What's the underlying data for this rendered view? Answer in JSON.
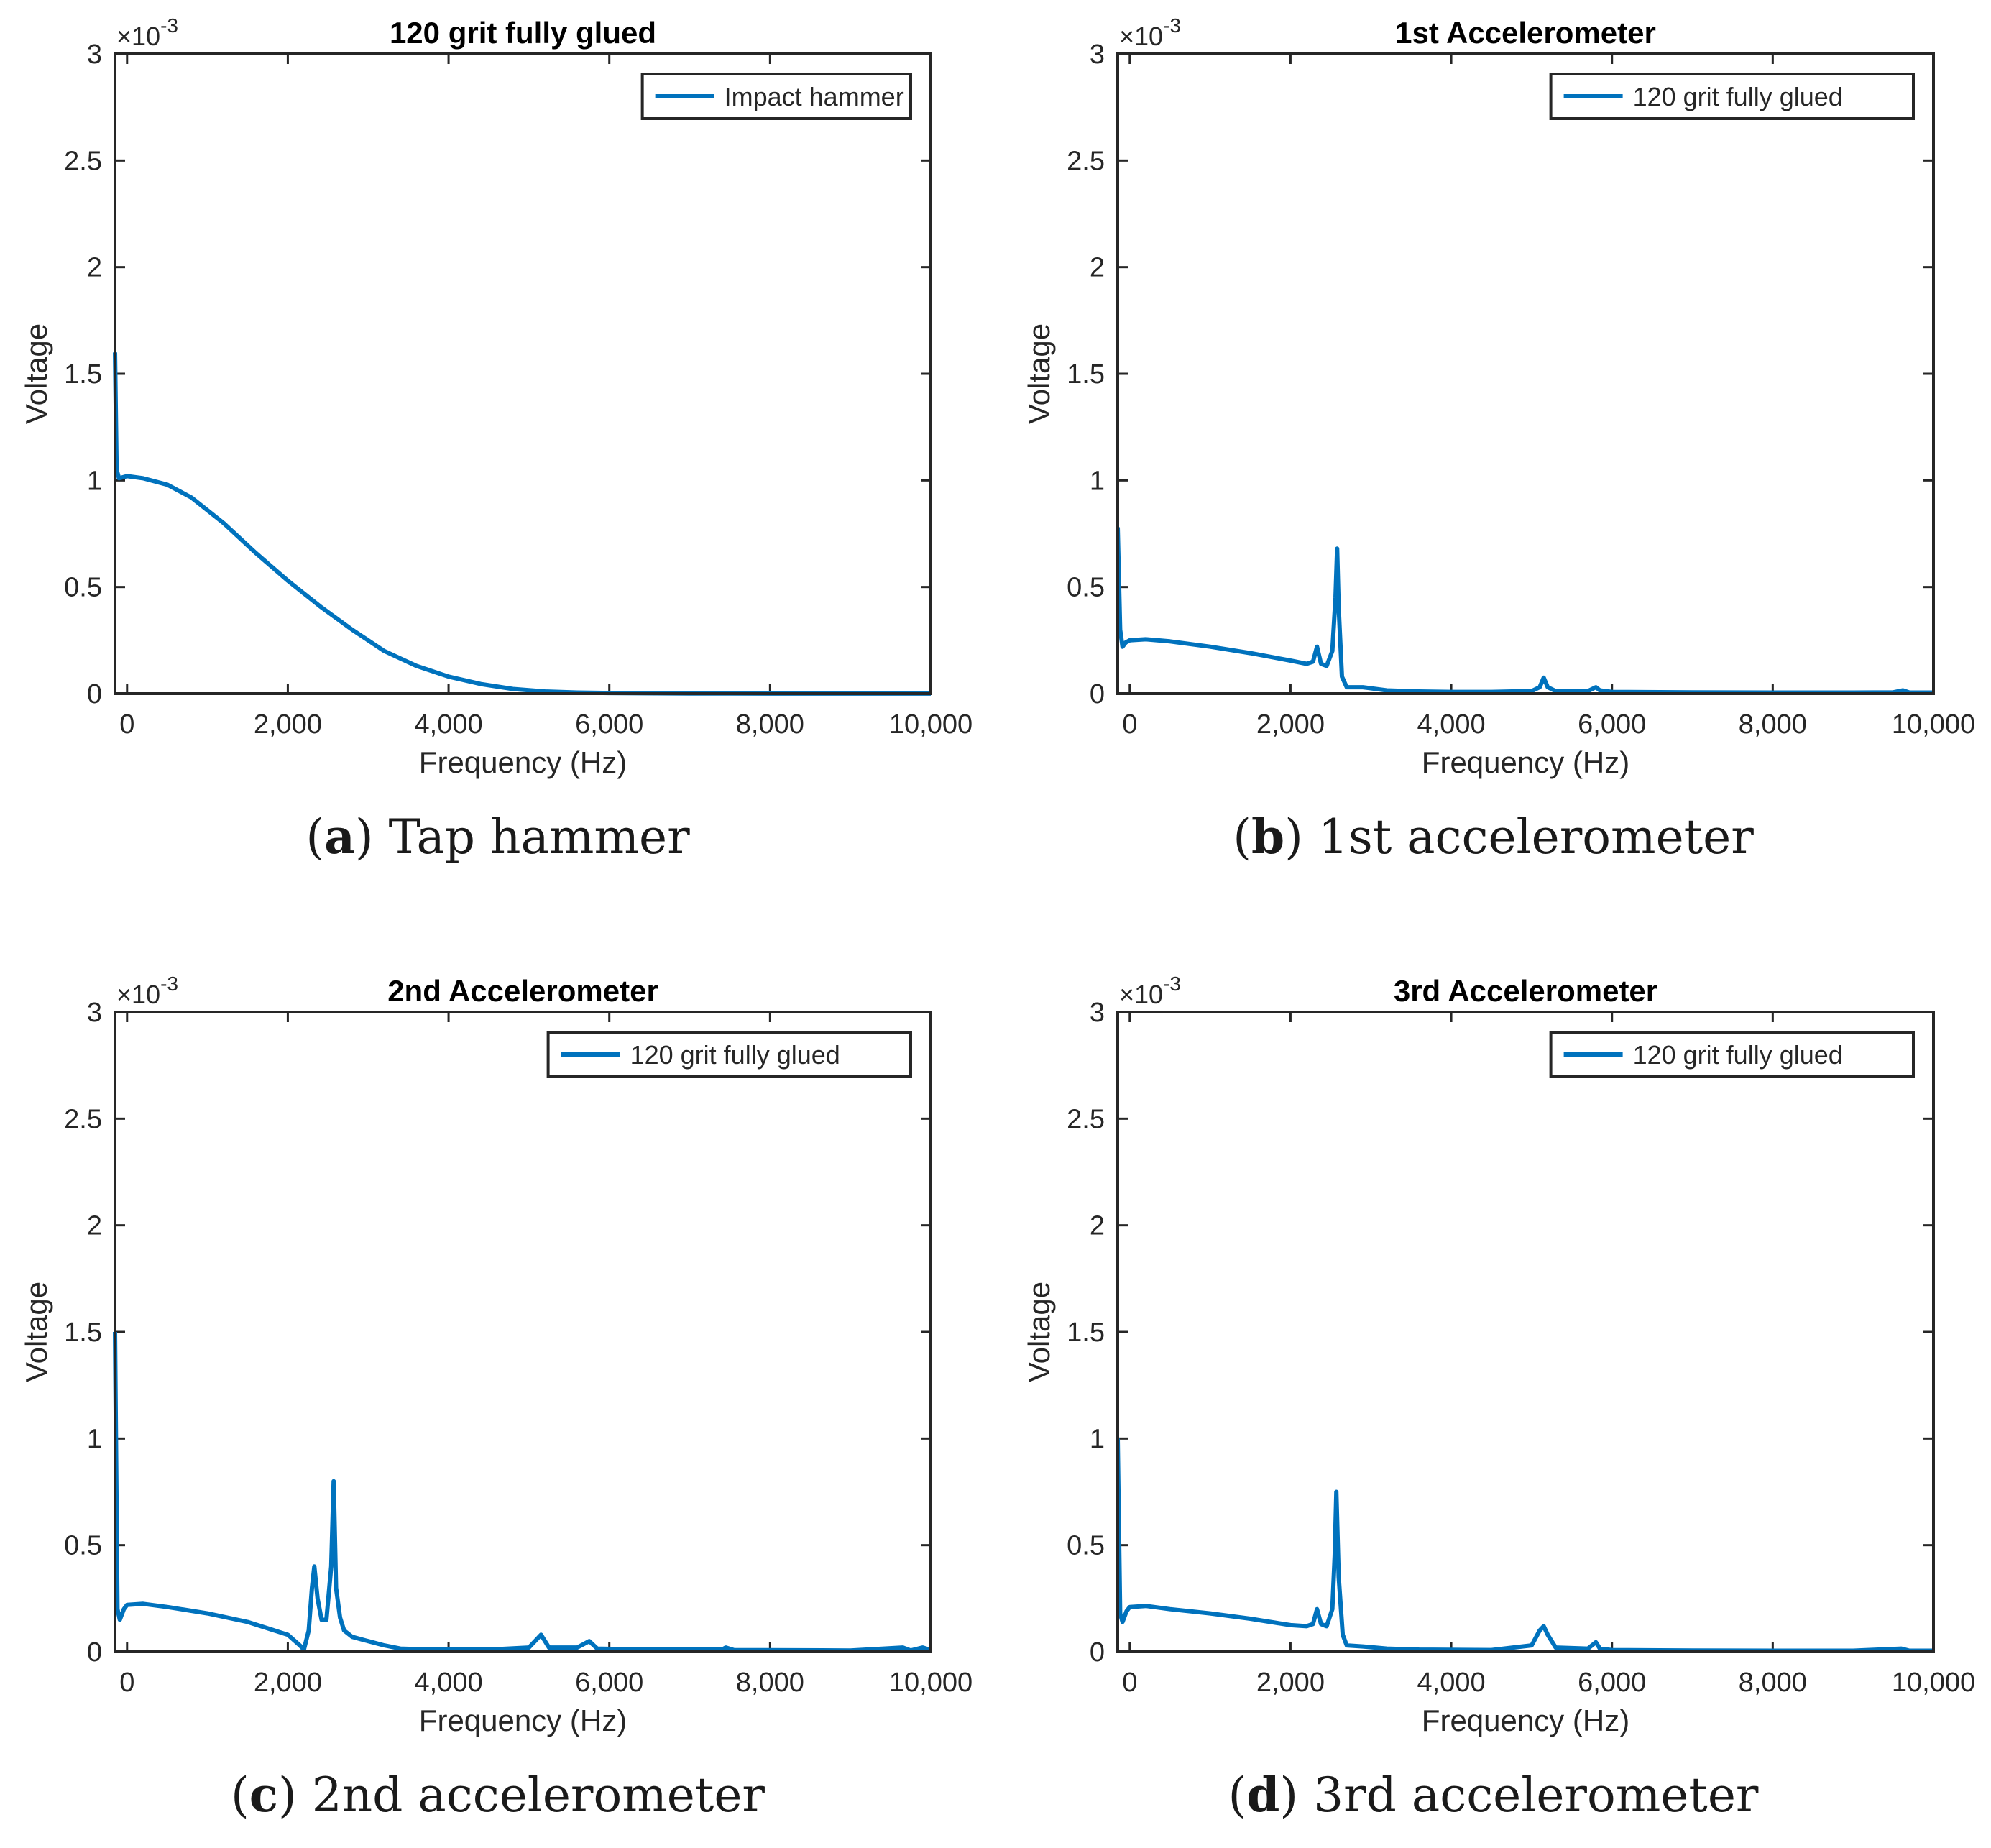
{
  "chart_data": [
    {
      "id": "a",
      "type": "line",
      "title": "120 grit fully glued",
      "xlabel": "Frequency (Hz)",
      "ylabel": "Voltage",
      "exponent_label": "×10",
      "exponent_power": "-3",
      "xlim": [
        -150,
        10000
      ],
      "ylim": [
        0,
        3
      ],
      "xticks": [
        0,
        2000,
        4000,
        6000,
        8000,
        10000
      ],
      "xtick_labels": [
        "0",
        "2,000",
        "4,000",
        "6,000",
        "8,000",
        "10,000"
      ],
      "yticks": [
        0,
        0.5,
        1,
        1.5,
        2,
        2.5,
        3
      ],
      "ytick_labels": [
        "0",
        "0.5",
        "1",
        "1.5",
        "2",
        "2.5",
        "3"
      ],
      "legend": "Impact hammer",
      "legend_position": "top-right",
      "color": "#0072bd",
      "caption_letter": "a",
      "caption_text": "Tap hammer",
      "series": [
        {
          "name": "Impact hammer",
          "points": [
            [
              -150,
              1.6
            ],
            [
              -130,
              1.05
            ],
            [
              -100,
              1.01
            ],
            [
              0,
              1.02
            ],
            [
              200,
              1.01
            ],
            [
              500,
              0.98
            ],
            [
              800,
              0.92
            ],
            [
              1200,
              0.8
            ],
            [
              1600,
              0.66
            ],
            [
              2000,
              0.53
            ],
            [
              2400,
              0.41
            ],
            [
              2800,
              0.3
            ],
            [
              3200,
              0.2
            ],
            [
              3600,
              0.13
            ],
            [
              4000,
              0.08
            ],
            [
              4400,
              0.045
            ],
            [
              4800,
              0.022
            ],
            [
              5200,
              0.01
            ],
            [
              5600,
              0.005
            ],
            [
              6000,
              0.003
            ],
            [
              7000,
              0.001
            ],
            [
              8000,
              0.0005
            ],
            [
              10000,
              0.0003
            ]
          ]
        }
      ]
    },
    {
      "id": "b",
      "type": "line",
      "title": "1st Accelerometer",
      "xlabel": "Frequency (Hz)",
      "ylabel": "Voltage",
      "exponent_label": "×10",
      "exponent_power": "-3",
      "xlim": [
        -150,
        10000
      ],
      "ylim": [
        0,
        3
      ],
      "xticks": [
        0,
        2000,
        4000,
        6000,
        8000,
        10000
      ],
      "xtick_labels": [
        "0",
        "2,000",
        "4,000",
        "6,000",
        "8,000",
        "10,000"
      ],
      "yticks": [
        0,
        0.5,
        1,
        1.5,
        2,
        2.5,
        3
      ],
      "ytick_labels": [
        "0",
        "0.5",
        "1",
        "1.5",
        "2",
        "2.5",
        "3"
      ],
      "legend": "120 grit fully glued",
      "legend_position": "top-right",
      "color": "#0072bd",
      "caption_letter": "b",
      "caption_text": "1st accelerometer",
      "series": [
        {
          "name": "120 grit fully glued",
          "points": [
            [
              -150,
              0.78
            ],
            [
              -120,
              0.3
            ],
            [
              -90,
              0.22
            ],
            [
              -50,
              0.24
            ],
            [
              0,
              0.25
            ],
            [
              200,
              0.255
            ],
            [
              500,
              0.245
            ],
            [
              1000,
              0.22
            ],
            [
              1500,
              0.19
            ],
            [
              2000,
              0.155
            ],
            [
              2200,
              0.14
            ],
            [
              2280,
              0.15
            ],
            [
              2330,
              0.22
            ],
            [
              2380,
              0.14
            ],
            [
              2450,
              0.13
            ],
            [
              2520,
              0.2
            ],
            [
              2560,
              0.45
            ],
            [
              2580,
              0.68
            ],
            [
              2600,
              0.4
            ],
            [
              2640,
              0.08
            ],
            [
              2700,
              0.03
            ],
            [
              2900,
              0.03
            ],
            [
              3200,
              0.015
            ],
            [
              3600,
              0.01
            ],
            [
              4000,
              0.008
            ],
            [
              4500,
              0.008
            ],
            [
              5000,
              0.012
            ],
            [
              5100,
              0.03
            ],
            [
              5150,
              0.075
            ],
            [
              5200,
              0.03
            ],
            [
              5300,
              0.012
            ],
            [
              5700,
              0.012
            ],
            [
              5800,
              0.03
            ],
            [
              5850,
              0.015
            ],
            [
              6000,
              0.008
            ],
            [
              7000,
              0.006
            ],
            [
              8000,
              0.005
            ],
            [
              9000,
              0.005
            ],
            [
              9500,
              0.006
            ],
            [
              9620,
              0.015
            ],
            [
              9700,
              0.005
            ],
            [
              10000,
              0.005
            ]
          ]
        }
      ]
    },
    {
      "id": "c",
      "type": "line",
      "title": "2nd Accelerometer",
      "xlabel": "Frequency (Hz)",
      "ylabel": "Voltage",
      "exponent_label": "×10",
      "exponent_power": "-3",
      "xlim": [
        -150,
        10000
      ],
      "ylim": [
        0,
        3
      ],
      "xticks": [
        0,
        2000,
        4000,
        6000,
        8000,
        10000
      ],
      "xtick_labels": [
        "0",
        "2,000",
        "4,000",
        "6,000",
        "8,000",
        "10,000"
      ],
      "yticks": [
        0,
        0.5,
        1,
        1.5,
        2,
        2.5,
        3
      ],
      "ytick_labels": [
        "0",
        "0.5",
        "1",
        "1.5",
        "2",
        "2.5",
        "3"
      ],
      "legend": "120 grit fully glued",
      "legend_position": "top-right",
      "color": "#0072bd",
      "caption_letter": "c",
      "caption_text": "2nd accelerometer",
      "series": [
        {
          "name": "120 grit fully glued",
          "points": [
            [
              -150,
              1.5
            ],
            [
              -120,
              0.2
            ],
            [
              -90,
              0.15
            ],
            [
              -40,
              0.2
            ],
            [
              0,
              0.22
            ],
            [
              200,
              0.225
            ],
            [
              500,
              0.21
            ],
            [
              1000,
              0.18
            ],
            [
              1500,
              0.14
            ],
            [
              2000,
              0.08
            ],
            [
              2150,
              0.03
            ],
            [
              2200,
              0.01
            ],
            [
              2260,
              0.1
            ],
            [
              2300,
              0.3
            ],
            [
              2330,
              0.4
            ],
            [
              2370,
              0.25
            ],
            [
              2420,
              0.15
            ],
            [
              2480,
              0.15
            ],
            [
              2540,
              0.4
            ],
            [
              2570,
              0.8
            ],
            [
              2600,
              0.3
            ],
            [
              2650,
              0.16
            ],
            [
              2700,
              0.1
            ],
            [
              2800,
              0.07
            ],
            [
              3000,
              0.05
            ],
            [
              3200,
              0.03
            ],
            [
              3400,
              0.015
            ],
            [
              3800,
              0.01
            ],
            [
              4500,
              0.01
            ],
            [
              5000,
              0.02
            ],
            [
              5150,
              0.08
            ],
            [
              5250,
              0.02
            ],
            [
              5600,
              0.02
            ],
            [
              5750,
              0.05
            ],
            [
              5850,
              0.015
            ],
            [
              6500,
              0.01
            ],
            [
              7400,
              0.01
            ],
            [
              7450,
              0.02
            ],
            [
              7550,
              0.008
            ],
            [
              9000,
              0.006
            ],
            [
              9650,
              0.02
            ],
            [
              9750,
              0.006
            ],
            [
              9900,
              0.02
            ],
            [
              10000,
              0.008
            ]
          ]
        }
      ]
    },
    {
      "id": "d",
      "type": "line",
      "title": "3rd Accelerometer",
      "xlabel": "Frequency (Hz)",
      "ylabel": "Voltage",
      "exponent_label": "×10",
      "exponent_power": "-3",
      "xlim": [
        -150,
        10000
      ],
      "ylim": [
        0,
        3
      ],
      "xticks": [
        0,
        2000,
        4000,
        6000,
        8000,
        10000
      ],
      "xtick_labels": [
        "0",
        "2,000",
        "4,000",
        "6,000",
        "8,000",
        "10,000"
      ],
      "yticks": [
        0,
        0.5,
        1,
        1.5,
        2,
        2.5,
        3
      ],
      "ytick_labels": [
        "0",
        "0.5",
        "1",
        "1.5",
        "2",
        "2.5",
        "3"
      ],
      "legend": "120 grit fully glued",
      "legend_position": "top-right",
      "color": "#0072bd",
      "caption_letter": "d",
      "caption_text": "3rd accelerometer",
      "series": [
        {
          "name": "120 grit fully glued",
          "points": [
            [
              -150,
              1.0
            ],
            [
              -120,
              0.18
            ],
            [
              -90,
              0.14
            ],
            [
              -40,
              0.19
            ],
            [
              0,
              0.21
            ],
            [
              200,
              0.215
            ],
            [
              500,
              0.2
            ],
            [
              1000,
              0.18
            ],
            [
              1500,
              0.155
            ],
            [
              2000,
              0.125
            ],
            [
              2200,
              0.12
            ],
            [
              2280,
              0.13
            ],
            [
              2330,
              0.2
            ],
            [
              2380,
              0.13
            ],
            [
              2450,
              0.12
            ],
            [
              2520,
              0.2
            ],
            [
              2550,
              0.45
            ],
            [
              2570,
              0.75
            ],
            [
              2600,
              0.35
            ],
            [
              2650,
              0.08
            ],
            [
              2700,
              0.03
            ],
            [
              2900,
              0.025
            ],
            [
              3200,
              0.015
            ],
            [
              3600,
              0.01
            ],
            [
              4500,
              0.008
            ],
            [
              5000,
              0.03
            ],
            [
              5100,
              0.1
            ],
            [
              5150,
              0.12
            ],
            [
              5200,
              0.08
            ],
            [
              5300,
              0.02
            ],
            [
              5700,
              0.015
            ],
            [
              5800,
              0.045
            ],
            [
              5850,
              0.015
            ],
            [
              6000,
              0.008
            ],
            [
              7000,
              0.006
            ],
            [
              8000,
              0.005
            ],
            [
              9000,
              0.005
            ],
            [
              9600,
              0.015
            ],
            [
              9700,
              0.005
            ],
            [
              10000,
              0.005
            ]
          ]
        }
      ]
    }
  ]
}
